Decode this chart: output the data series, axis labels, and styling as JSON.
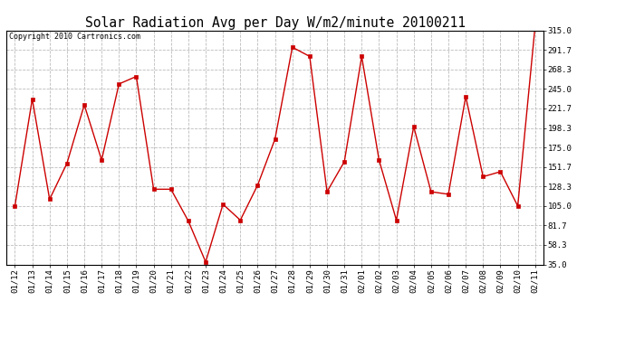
{
  "title": "Solar Radiation Avg per Day W/m2/minute 20100211",
  "copyright": "Copyright 2010 Cartronics.com",
  "dates": [
    "01/12",
    "01/13",
    "01/14",
    "01/15",
    "01/16",
    "01/17",
    "01/18",
    "01/19",
    "01/20",
    "01/21",
    "01/22",
    "01/23",
    "01/24",
    "01/25",
    "01/26",
    "01/27",
    "01/28",
    "01/29",
    "01/30",
    "01/31",
    "02/01",
    "02/02",
    "02/03",
    "02/04",
    "02/05",
    "02/06",
    "02/07",
    "02/08",
    "02/09",
    "02/10",
    "02/11"
  ],
  "values": [
    105.0,
    233.0,
    113.0,
    156.0,
    226.0,
    160.0,
    251.0,
    260.0,
    125.0,
    125.0,
    87.0,
    38.0,
    107.0,
    88.0,
    130.0,
    185.0,
    295.0,
    284.0,
    122.0,
    158.0,
    284.0,
    160.0,
    88.0,
    200.0,
    122.0,
    119.0,
    236.0,
    140.0,
    146.0,
    105.0,
    320.0
  ],
  "ylim": [
    35.0,
    315.0
  ],
  "yticks": [
    35.0,
    58.3,
    81.7,
    105.0,
    128.3,
    151.7,
    175.0,
    198.3,
    221.7,
    245.0,
    268.3,
    291.7,
    315.0
  ],
  "line_color": "#cc0000",
  "marker": "s",
  "marker_size": 2.5,
  "background_color": "#ffffff",
  "grid_color": "#bbbbbb",
  "title_fontsize": 10.5,
  "tick_fontsize": 6.5,
  "copyright_fontsize": 6.0
}
